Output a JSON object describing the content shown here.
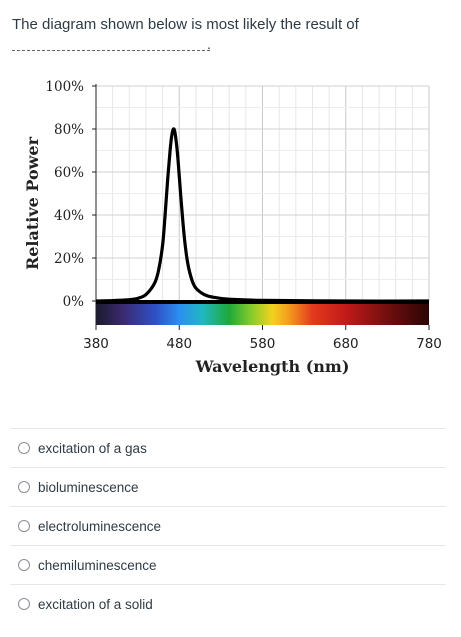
{
  "question": {
    "text": "The diagram shown below is most likely the result of",
    "blank_suffix": "."
  },
  "chart_data": {
    "type": "line",
    "title": "",
    "xlabel": "Wavelength (nm)",
    "ylabel": "Relative Power",
    "xlim": [
      380,
      780
    ],
    "ylim": [
      0,
      100
    ],
    "x_ticks": [
      380,
      480,
      580,
      680,
      780
    ],
    "x_tick_labels": [
      "380",
      "480",
      "580",
      "680",
      "780"
    ],
    "y_ticks": [
      0,
      20,
      40,
      60,
      80,
      100
    ],
    "y_tick_labels": [
      "0%",
      "20%",
      "40%",
      "60%",
      "80%",
      "100%"
    ],
    "grid": true,
    "spectrum_bar": true,
    "series": [
      {
        "name": "",
        "color": "#000000",
        "x": [
          380,
          400,
          420,
          430,
          440,
          450,
          455,
          460,
          463,
          466,
          469,
          471,
          473,
          475,
          478,
          482,
          486,
          490,
          495,
          500,
          510,
          520,
          540,
          580,
          680,
          780
        ],
        "y": [
          0,
          0.2,
          0.6,
          1.2,
          3,
          8,
          14,
          26,
          40,
          56,
          70,
          77,
          80,
          78,
          68,
          48,
          30,
          18,
          10,
          6,
          3,
          1.8,
          0.8,
          0.3,
          0,
          0
        ]
      }
    ]
  },
  "answers": [
    {
      "label": "excitation of a gas"
    },
    {
      "label": "bioluminescence"
    },
    {
      "label": "electroluminescence"
    },
    {
      "label": "chemiluminescence"
    },
    {
      "label": "excitation of a solid"
    }
  ]
}
